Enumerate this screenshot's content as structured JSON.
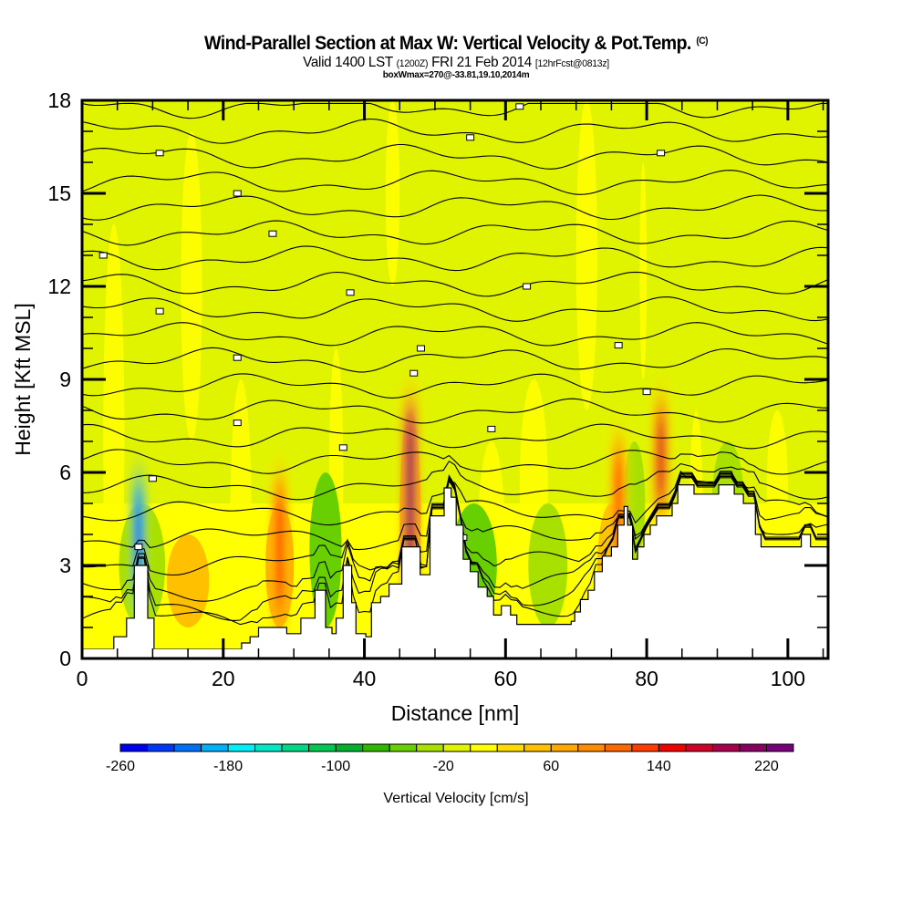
{
  "header": {
    "title": "Wind-Parallel Section at Max W: Vertical Velocity & Pot.Temp.",
    "copyright_mark": "(C)",
    "subtitle_valid": "Valid 1400 LST",
    "subtitle_utc": "(1200Z)",
    "subtitle_date": "FRI 21 Feb 2014",
    "subtitle_fcst": "[12hrFcst@0813z]",
    "subtitle_box": "boxWmax=270@-33.81,19.10,2014m"
  },
  "chart_data": {
    "type": "heatmap",
    "title": "Wind-Parallel Section at Max W: Vertical Velocity & Pot.Temp.",
    "xlabel": "Distance [nm]",
    "ylabel": "Height [Kft MSL]",
    "xlim": [
      0,
      105.7
    ],
    "ylim": [
      0,
      18
    ],
    "xticks": [
      0,
      20,
      40,
      60,
      80,
      100
    ],
    "xtick_labels": [
      "0",
      "20",
      "40",
      "60",
      "80",
      "100"
    ],
    "x_minor_step": 5,
    "yticks": [
      0,
      3,
      6,
      9,
      12,
      15,
      18
    ],
    "ytick_labels": [
      "0",
      "3",
      "6",
      "9",
      "12",
      "15",
      "18"
    ],
    "y_minor_step": 1,
    "background_value_band": [
      -20,
      0
    ],
    "terrain_kft": [
      [
        0,
        0.3
      ],
      [
        4.5,
        0.7
      ],
      [
        6.3,
        1.3
      ],
      [
        7.4,
        3.0
      ],
      [
        9.3,
        1.3
      ],
      [
        10.2,
        0.3
      ],
      [
        22.6,
        0.5
      ],
      [
        23.8,
        0.7
      ],
      [
        25.0,
        1.0
      ],
      [
        29.0,
        0.8
      ],
      [
        31.0,
        1.3
      ],
      [
        33.0,
        2.2
      ],
      [
        34.5,
        1.0
      ],
      [
        35.4,
        0.8
      ],
      [
        36.0,
        1.3
      ],
      [
        37.0,
        3.0
      ],
      [
        38.2,
        1.8
      ],
      [
        38.8,
        0.8
      ],
      [
        40.2,
        0.7
      ],
      [
        41.0,
        1.8
      ],
      [
        42.3,
        2.0
      ],
      [
        43.5,
        2.4
      ],
      [
        45.3,
        3.6
      ],
      [
        47.0,
        3.6
      ],
      [
        47.9,
        2.7
      ],
      [
        49.3,
        4.6
      ],
      [
        51.3,
        5.5
      ],
      [
        52.3,
        5.2
      ],
      [
        53.0,
        4.3
      ],
      [
        54.0,
        3.2
      ],
      [
        55.0,
        2.8
      ],
      [
        56.1,
        2.3
      ],
      [
        57.4,
        2.0
      ],
      [
        58.3,
        1.4
      ],
      [
        59.4,
        1.7
      ],
      [
        60.7,
        1.4
      ],
      [
        61.6,
        1.1
      ],
      [
        69.3,
        1.2
      ],
      [
        69.8,
        1.5
      ],
      [
        70.6,
        1.9
      ],
      [
        71.7,
        2.2
      ],
      [
        72.6,
        2.8
      ],
      [
        73.7,
        3.3
      ],
      [
        75.0,
        3.6
      ],
      [
        75.9,
        4.3
      ],
      [
        76.8,
        4.9
      ],
      [
        77.3,
        4.3
      ],
      [
        78.0,
        3.2
      ],
      [
        78.7,
        3.6
      ],
      [
        79.6,
        4.0
      ],
      [
        80.5,
        4.3
      ],
      [
        81.4,
        4.6
      ],
      [
        82.7,
        4.6
      ],
      [
        83.6,
        5.0
      ],
      [
        84.4,
        5.6
      ],
      [
        85.7,
        5.6
      ],
      [
        86.7,
        5.3
      ],
      [
        88.9,
        5.3
      ],
      [
        90.2,
        5.6
      ],
      [
        91.5,
        5.6
      ],
      [
        92.4,
        5.3
      ],
      [
        93.7,
        5.0
      ],
      [
        95.4,
        4.0
      ],
      [
        96.2,
        3.6
      ],
      [
        98.8,
        3.6
      ],
      [
        99.7,
        3.6
      ],
      [
        101.9,
        4.0
      ],
      [
        103.2,
        3.6
      ],
      [
        105.7,
        3.6
      ]
    ],
    "terrain_floor_kft": 0.3,
    "high_value_plumes": [
      {
        "x": 8.0,
        "y0": 1.3,
        "y1": 6.2,
        "value": -240
      },
      {
        "x": 28.0,
        "y0": 1.0,
        "y1": 6.0,
        "value": 140
      },
      {
        "x": 46.5,
        "y0": 1.5,
        "y1": 8.6,
        "value": 220
      },
      {
        "x": 76.0,
        "y0": 2.0,
        "y1": 7.2,
        "value": 120
      },
      {
        "x": 82.0,
        "y0": 4.4,
        "y1": 8.5,
        "value": 160
      }
    ],
    "colorbar": {
      "title": "Vertical Velocity [cm/s]",
      "min": -260,
      "max": 240,
      "step": 20,
      "tick_values": [
        -260,
        -180,
        -100,
        -20,
        60,
        140,
        220
      ],
      "tick_labels": [
        "-260",
        "-180",
        "-100",
        "-20",
        "60",
        "140",
        "220"
      ],
      "colors": [
        "#0000f0",
        "#0038f8",
        "#0070f8",
        "#00b0f8",
        "#00f0f8",
        "#00e8c8",
        "#00d888",
        "#00c850",
        "#00b030",
        "#30b800",
        "#68d000",
        "#a8e000",
        "#e0f400",
        "#ffff00",
        "#ffdc00",
        "#ffc000",
        "#ffa800",
        "#ff8c00",
        "#ff6800",
        "#ff3c00",
        "#f00000",
        "#d00028",
        "#a8004c",
        "#880060",
        "#780078"
      ]
    },
    "contour_count": 22
  }
}
